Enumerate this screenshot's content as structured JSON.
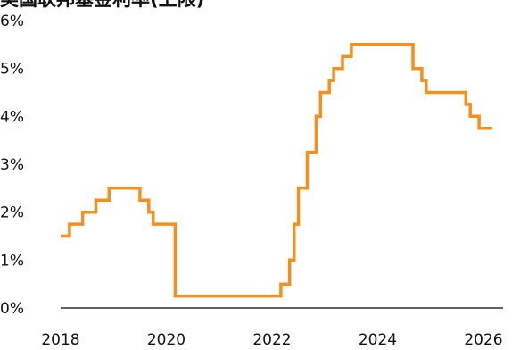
{
  "chart_data": {
    "type": "line",
    "title": "美国联邦基金利率(上限)",
    "xlabel": "",
    "ylabel": "",
    "x_tick_labels": [
      "2018",
      "2020",
      "2022",
      "2024",
      "2026"
    ],
    "x_ticks": [
      2018,
      2020,
      2022,
      2024,
      2026
    ],
    "y_tick_labels": [
      "0%",
      "1%",
      "2%",
      "3%",
      "4%",
      "5%",
      "6%"
    ],
    "y_ticks": [
      0,
      1,
      2,
      3,
      4,
      5,
      6
    ],
    "xlim": [
      2018,
      2026
    ],
    "ylim": [
      0,
      6
    ],
    "step": true,
    "grid": false,
    "colors": {
      "line": "#F5901E",
      "axis": "#000000",
      "text": "#111111"
    },
    "series": [
      {
        "x": [
          "2018-01",
          "2018-03",
          "2018-06",
          "2018-09",
          "2018-12",
          "2019-07",
          "2019-09",
          "2019-10",
          "2020-03",
          "2020-03",
          "2022-03",
          "2022-05",
          "2022-06",
          "2022-07",
          "2022-09",
          "2022-11",
          "2022-12",
          "2023-02",
          "2023-03",
          "2023-05",
          "2023-07",
          "2024-09",
          "2024-11",
          "2024-12",
          "2025-09",
          "2025-10",
          "2025-12",
          "2026-03"
        ],
        "y": [
          1.5,
          1.75,
          2.0,
          2.25,
          2.5,
          2.25,
          2.0,
          1.75,
          1.25,
          0.25,
          0.5,
          1.0,
          1.75,
          2.5,
          3.25,
          4.0,
          4.5,
          4.75,
          5.0,
          5.25,
          5.5,
          5.0,
          4.75,
          4.5,
          4.25,
          4.0,
          3.75,
          3.75
        ]
      }
    ]
  }
}
